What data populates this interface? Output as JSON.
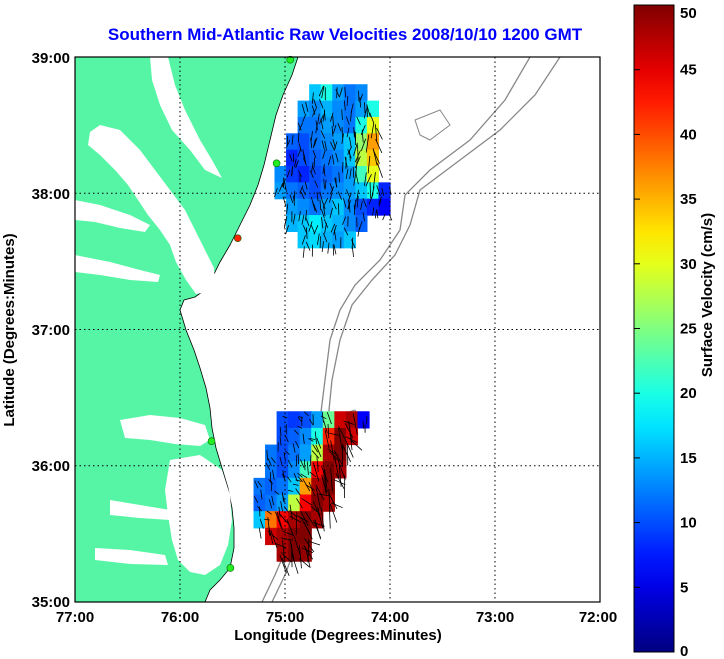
{
  "title": "Southern Mid-Atlantic Raw Velocities 2008/10/10 1200 GMT",
  "x_axis": {
    "label": "Longitude (Degrees:Minutes)",
    "ticks": [
      "77:00",
      "76:00",
      "75:00",
      "74:00",
      "73:00",
      "72:00"
    ]
  },
  "y_axis": {
    "label": "Latitude (Degrees:Minutes)",
    "ticks": [
      "39:00",
      "38:00",
      "37:00",
      "36:00",
      "35:00"
    ]
  },
  "colorbar": {
    "label": "Surface Velocity (cm/s)",
    "ticks": [
      "50",
      "45",
      "40",
      "35",
      "30",
      "25",
      "20",
      "15",
      "10",
      "5",
      "0"
    ],
    "range": [
      0,
      50
    ],
    "colormap": "jet"
  },
  "colors": {
    "land": "#55f5a5",
    "title": "#0000ff",
    "station": "#22ee22",
    "station_alt": "#ff2200"
  },
  "map": {
    "lon_range": [
      -77,
      -72
    ],
    "lat_range": [
      35,
      39
    ],
    "grid": true
  },
  "chart_data": {
    "type": "heatmap",
    "title": "Southern Mid-Atlantic Raw Velocities 2008/10/10 1200 GMT",
    "xlabel": "Longitude (Degrees:Minutes)",
    "ylabel": "Latitude (Degrees:Minutes)",
    "xlim": [
      -77,
      -72
    ],
    "ylim": [
      35,
      39
    ],
    "clim": [
      0,
      50
    ],
    "units": "cm/s",
    "stations": [
      {
        "lon": -74.95,
        "lat": 38.98,
        "color": "green"
      },
      {
        "lon": -75.08,
        "lat": 38.22,
        "color": "green"
      },
      {
        "lon": -75.45,
        "lat": 37.67,
        "color": "red"
      },
      {
        "lon": -75.7,
        "lat": 36.18,
        "color": "green"
      },
      {
        "lon": -75.52,
        "lat": 35.25,
        "color": "green"
      }
    ],
    "north_patch": {
      "lon_range": [
        -75.1,
        -74.0
      ],
      "lat_range": [
        37.6,
        38.8
      ],
      "velocity_grid": [
        [
          -1,
          -1,
          -1,
          16,
          20,
          14,
          12,
          13,
          -1,
          -1
        ],
        [
          -1,
          -1,
          14,
          13,
          15,
          13,
          12,
          14,
          20,
          -1
        ],
        [
          -1,
          -1,
          12,
          12,
          14,
          13,
          12,
          20,
          30,
          -1
        ],
        [
          -1,
          11,
          10,
          12,
          13,
          14,
          16,
          26,
          36,
          -1
        ],
        [
          -1,
          8,
          10,
          11,
          12,
          13,
          16,
          28,
          34,
          -1
        ],
        [
          13,
          9,
          8,
          10,
          11,
          12,
          14,
          22,
          30,
          -1
        ],
        [
          14,
          12,
          11,
          10,
          12,
          13,
          14,
          16,
          20,
          8
        ],
        [
          -1,
          14,
          13,
          12,
          14,
          16,
          13,
          10,
          8,
          6
        ],
        [
          -1,
          15,
          16,
          18,
          16,
          15,
          13,
          11,
          -1,
          -1
        ],
        [
          -1,
          -1,
          16,
          17,
          15,
          14,
          16,
          -1,
          -1,
          -1
        ]
      ]
    },
    "south_patch": {
      "lon_range": [
        -75.3,
        -74.2
      ],
      "lat_range": [
        35.3,
        36.4
      ],
      "velocity_grid": [
        [
          -1,
          -1,
          10,
          9,
          10,
          14,
          24,
          46,
          48,
          6
        ],
        [
          -1,
          -1,
          10,
          11,
          13,
          20,
          42,
          50,
          46,
          -1
        ],
        [
          -1,
          12,
          10,
          12,
          14,
          28,
          48,
          50,
          -1,
          -1
        ],
        [
          -1,
          12,
          10,
          13,
          22,
          44,
          50,
          48,
          -1,
          -1
        ],
        [
          12,
          11,
          12,
          16,
          36,
          48,
          50,
          -1,
          -1,
          -1
        ],
        [
          11,
          12,
          14,
          28,
          44,
          50,
          48,
          -1,
          -1,
          -1
        ],
        [
          16,
          38,
          44,
          48,
          50,
          48,
          -1,
          -1,
          -1,
          -1
        ],
        [
          -1,
          46,
          48,
          50,
          50,
          -1,
          -1,
          -1,
          -1,
          -1
        ],
        [
          -1,
          -1,
          48,
          50,
          49,
          -1,
          -1,
          -1,
          -1,
          -1
        ]
      ]
    }
  }
}
